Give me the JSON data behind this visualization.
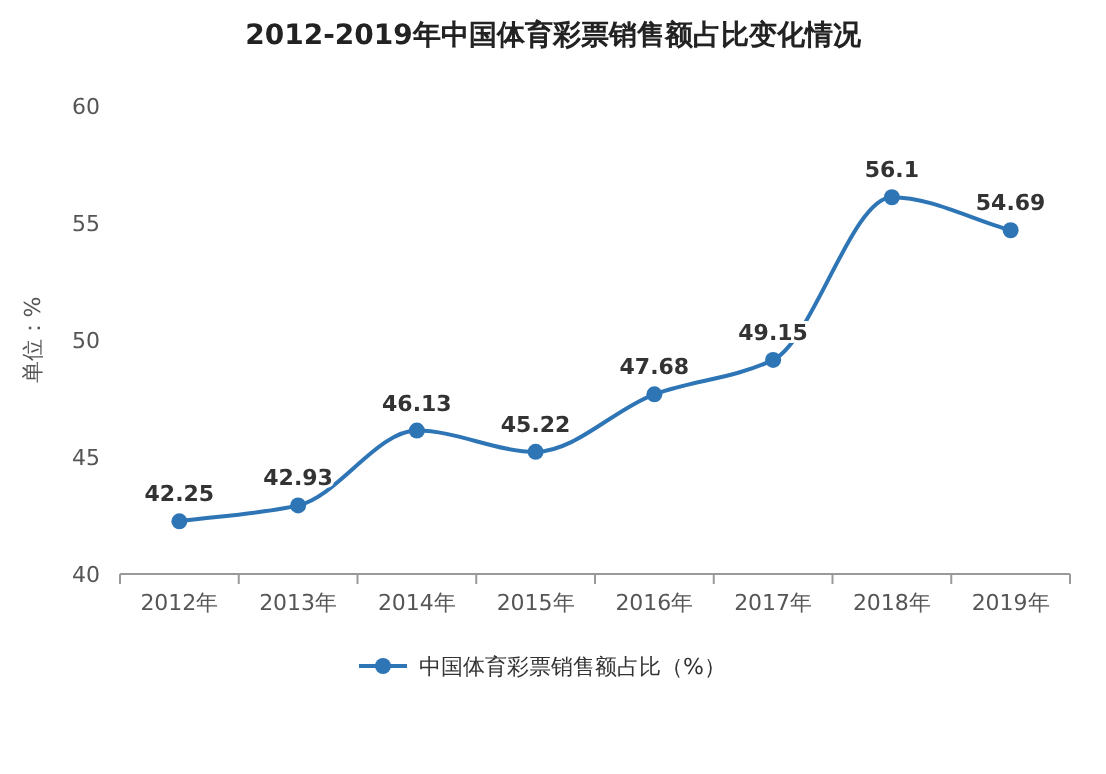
{
  "chart_data": {
    "type": "line",
    "title": "2012-2019年中国体育彩票销售额占比变化情况",
    "ylabel": "单位：%",
    "categories": [
      "2012年",
      "2013年",
      "2014年",
      "2015年",
      "2016年",
      "2017年",
      "2018年",
      "2019年"
    ],
    "series": [
      {
        "name": "中国体育彩票销售额占比（%）",
        "color": "#2e75b6",
        "values": [
          42.25,
          42.93,
          46.13,
          45.22,
          47.68,
          49.15,
          56.1,
          54.69
        ]
      }
    ],
    "ylim": [
      40,
      60
    ],
    "yticks": [
      40,
      45,
      50,
      55,
      60
    ],
    "marker": "circle",
    "line_style": "solid",
    "data_labels": true,
    "legend": "bottom",
    "grid": false
  }
}
